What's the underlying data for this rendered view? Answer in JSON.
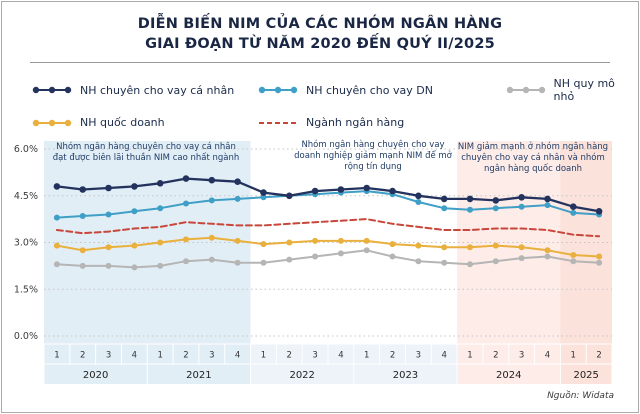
{
  "title": {
    "line1": "DIỄN BIẾN NIM CỦA CÁC NHÓM NGÂN HÀNG",
    "line2": "GIAI ĐOẠN TỪ NĂM 2020 ĐẾN QUÝ II/2025"
  },
  "legend": [
    {
      "label": "NH chuyên cho vay cá nhân",
      "color": "#24335e",
      "style": "line-dots"
    },
    {
      "label": "NH chuyên cho vay DN",
      "color": "#3f9fc6",
      "style": "line-dots"
    },
    {
      "label": "NH quy mô nhỏ",
      "color": "#b5b5b5",
      "style": "line-dots"
    },
    {
      "label": "NH quốc doanh",
      "color": "#e9b03d",
      "style": "line-dots"
    },
    {
      "label": "Ngành ngân hàng",
      "color": "#c8463a",
      "style": "dashed"
    }
  ],
  "annotations": [
    "Nhóm ngân hàng chuyên cho vay cá nhân đạt được biên lãi thuần NIM cao nhất ngành",
    "Nhóm ngân hàng chuyên cho vay doanh nghiệp giảm mạnh NIM để mở rộng tín dụng",
    "NIM giảm mạnh ở nhóm ngân hàng chuyên cho vay cá nhân và nhóm ngân hàng quốc doanh"
  ],
  "source": "Nguồn: Widata",
  "chart_data": {
    "type": "line",
    "x_quarters": [
      "1",
      "2",
      "3",
      "4",
      "1",
      "2",
      "3",
      "4",
      "1",
      "2",
      "3",
      "4",
      "1",
      "2",
      "3",
      "4",
      "1",
      "2",
      "3",
      "4",
      "1",
      "2"
    ],
    "years": [
      {
        "label": "2020",
        "span": 4
      },
      {
        "label": "2021",
        "span": 4
      },
      {
        "label": "2022",
        "span": 4
      },
      {
        "label": "2023",
        "span": 4
      },
      {
        "label": "2024",
        "span": 4
      },
      {
        "label": "2025",
        "span": 2
      }
    ],
    "yticks": [
      {
        "label": "0.0%",
        "value": 0
      },
      {
        "label": "1.5%",
        "value": 1.5
      },
      {
        "label": "3.0%",
        "value": 3
      },
      {
        "label": "4.5%",
        "value": 4.5
      },
      {
        "label": "6.0%",
        "value": 6
      }
    ],
    "ylim": [
      0,
      6
    ],
    "grid": true,
    "legend_position": "top",
    "colors": {
      "axis_band": "#edf3f8"
    },
    "regions": [
      {
        "start": 0,
        "end": 8,
        "color": "#e2eef6",
        "meaning": "2020-2021 highlight"
      },
      {
        "start": 16,
        "end": 22,
        "color": "#fdece8",
        "meaning": "2024-2025 highlight"
      },
      {
        "start": 20,
        "end": 22,
        "color": "#fbe2db",
        "meaning": "2025 highlight"
      }
    ],
    "series": [
      {
        "name": "NH quy mô nhỏ",
        "color": "#b5b5b5",
        "dashed": false,
        "markers": true,
        "width": 2,
        "marker_r": 3,
        "values": [
          2.3,
          2.25,
          2.25,
          2.2,
          2.25,
          2.4,
          2.45,
          2.35,
          2.35,
          2.45,
          2.55,
          2.65,
          2.75,
          2.55,
          2.4,
          2.35,
          2.3,
          2.4,
          2.5,
          2.55,
          2.4,
          2.35
        ]
      },
      {
        "name": "NH quốc doanh",
        "color": "#e9b03d",
        "dashed": false,
        "markers": true,
        "width": 2,
        "marker_r": 3,
        "values": [
          2.9,
          2.75,
          2.85,
          2.9,
          3.0,
          3.1,
          3.15,
          3.05,
          2.95,
          3.0,
          3.05,
          3.05,
          3.05,
          2.95,
          2.9,
          2.85,
          2.85,
          2.9,
          2.85,
          2.75,
          2.6,
          2.55
        ]
      },
      {
        "name": "Ngành ngân hàng",
        "color": "#c8463a",
        "dashed": true,
        "markers": false,
        "width": 2,
        "values": [
          3.4,
          3.3,
          3.35,
          3.45,
          3.5,
          3.65,
          3.6,
          3.55,
          3.55,
          3.6,
          3.65,
          3.7,
          3.75,
          3.6,
          3.5,
          3.4,
          3.4,
          3.45,
          3.45,
          3.4,
          3.25,
          3.2
        ]
      },
      {
        "name": "NH chuyên cho vay DN",
        "color": "#3f9fc6",
        "dashed": false,
        "markers": true,
        "width": 2,
        "marker_r": 3,
        "values": [
          3.8,
          3.85,
          3.9,
          4.0,
          4.1,
          4.25,
          4.35,
          4.4,
          4.45,
          4.5,
          4.55,
          4.6,
          4.65,
          4.55,
          4.3,
          4.1,
          4.05,
          4.1,
          4.15,
          4.2,
          3.95,
          3.9
        ]
      },
      {
        "name": "NH chuyên cho vay cá nhân",
        "color": "#24335e",
        "dashed": false,
        "markers": true,
        "width": 2.3,
        "marker_r": 3.3,
        "values": [
          4.8,
          4.7,
          4.75,
          4.8,
          4.9,
          5.05,
          5.0,
          4.95,
          4.6,
          4.5,
          4.65,
          4.7,
          4.75,
          4.65,
          4.5,
          4.4,
          4.4,
          4.35,
          4.45,
          4.4,
          4.15,
          4.0
        ]
      }
    ]
  }
}
